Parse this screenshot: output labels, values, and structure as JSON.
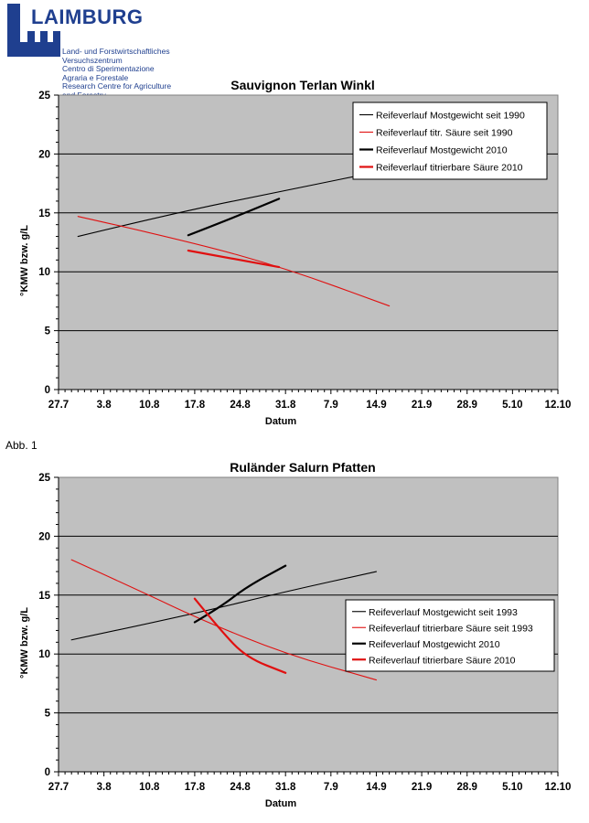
{
  "logo": {
    "name": "LAIMBURG",
    "lines": [
      "Land- und Forstwirtschaftliches",
      "Versuchszentrum",
      "Centro di Sperimentazione",
      "Agraria e Forestale",
      "Research Centre for Agriculture",
      "and Forestry"
    ]
  },
  "figure_label": "Abb. 1",
  "chart_data": [
    {
      "type": "line",
      "title": "Sauvignon Terlan Winkl",
      "xlabel": "Datum",
      "ylabel": "°KMW bzw. g/L",
      "ylim": [
        0,
        25
      ],
      "xlim": [
        0,
        136
      ],
      "x_ticks": [
        {
          "pos": 0,
          "label": "27.7"
        },
        {
          "pos": 7,
          "label": "3.8"
        },
        {
          "pos": 14,
          "label": "10.8"
        },
        {
          "pos": 21,
          "label": "17.8"
        },
        {
          "pos": 28,
          "label": "24.8"
        },
        {
          "pos": 35,
          "label": "31.8"
        },
        {
          "pos": 42,
          "label": "7.9"
        },
        {
          "pos": 49,
          "label": "14.9"
        },
        {
          "pos": 56,
          "label": "21.9"
        },
        {
          "pos": 63,
          "label": "28.9"
        },
        {
          "pos": 70,
          "label": "5.10"
        },
        {
          "pos": 77,
          "label": "12.10"
        }
      ],
      "y_ticks": [
        0,
        5,
        10,
        15,
        20,
        25
      ],
      "grid": "horizontal",
      "legend_position": "top-right",
      "series": [
        {
          "name": "Reifeverlauf Mostgewicht seit 1990",
          "color": "#000000",
          "width": 1.1,
          "points": [
            [
              3,
              13.0
            ],
            [
              18,
              15.0
            ],
            [
              35,
              16.9
            ],
            [
              51,
              18.7
            ]
          ]
        },
        {
          "name": "Reifeverlauf titr. Säure seit 1990",
          "color": "#e01010",
          "width": 1.1,
          "points": [
            [
              3,
              14.7
            ],
            [
              20,
              12.6
            ],
            [
              35,
              10.3
            ],
            [
              51,
              7.1
            ]
          ]
        },
        {
          "name": "Reifeverlauf Mostgewicht 2010",
          "color": "#000000",
          "width": 2.2,
          "points": [
            [
              20,
              13.1
            ],
            [
              27,
              14.6
            ],
            [
              34,
              16.2
            ]
          ]
        },
        {
          "name": "Reifeverlauf titrierbare Säure 2010",
          "color": "#e01010",
          "width": 2.2,
          "points": [
            [
              20,
              11.8
            ],
            [
              27,
              11.1
            ],
            [
              34,
              10.4
            ]
          ]
        }
      ]
    },
    {
      "type": "line",
      "title": "Ruländer Salurn Pfatten",
      "xlabel": "Datum",
      "ylabel": "°KMW bzw. g/L",
      "ylim": [
        0,
        25
      ],
      "xlim": [
        0,
        136
      ],
      "x_ticks": [
        {
          "pos": 0,
          "label": "27.7"
        },
        {
          "pos": 7,
          "label": "3.8"
        },
        {
          "pos": 14,
          "label": "10.8"
        },
        {
          "pos": 21,
          "label": "17.8"
        },
        {
          "pos": 28,
          "label": "24.8"
        },
        {
          "pos": 35,
          "label": "31.8"
        },
        {
          "pos": 42,
          "label": "7.9"
        },
        {
          "pos": 49,
          "label": "14.9"
        },
        {
          "pos": 56,
          "label": "21.9"
        },
        {
          "pos": 63,
          "label": "28.9"
        },
        {
          "pos": 70,
          "label": "5.10"
        },
        {
          "pos": 77,
          "label": "12.10"
        }
      ],
      "y_ticks": [
        0,
        5,
        10,
        15,
        20,
        25
      ],
      "grid": "horizontal",
      "legend_position": "middle-right",
      "series": [
        {
          "name": "Reifeverlauf Mostgewicht seit 1993",
          "color": "#000000",
          "width": 1.1,
          "points": [
            [
              2,
              11.2
            ],
            [
              20,
              13.3
            ],
            [
              35,
              15.3
            ],
            [
              49,
              17.0
            ]
          ]
        },
        {
          "name": "Reifeverlauf titrierbare Säure seit 1993",
          "color": "#e01010",
          "width": 1.1,
          "points": [
            [
              2,
              18.0
            ],
            [
              12,
              15.5
            ],
            [
              22,
              12.9
            ],
            [
              35,
              10.0
            ],
            [
              49,
              7.8
            ]
          ]
        },
        {
          "name": "Reifeverlauf Mostgewicht 2010",
          "color": "#000000",
          "width": 2.2,
          "points": [
            [
              21,
              12.7
            ],
            [
              25,
              14.0
            ],
            [
              29,
              15.7
            ],
            [
              35,
              17.5
            ]
          ]
        },
        {
          "name": "Reifeverlauf titrierbare Säure 2010",
          "color": "#e01010",
          "width": 2.2,
          "points": [
            [
              21,
              14.7
            ],
            [
              25,
              12.0
            ],
            [
              29,
              9.7
            ],
            [
              35,
              8.4
            ]
          ]
        }
      ]
    }
  ]
}
